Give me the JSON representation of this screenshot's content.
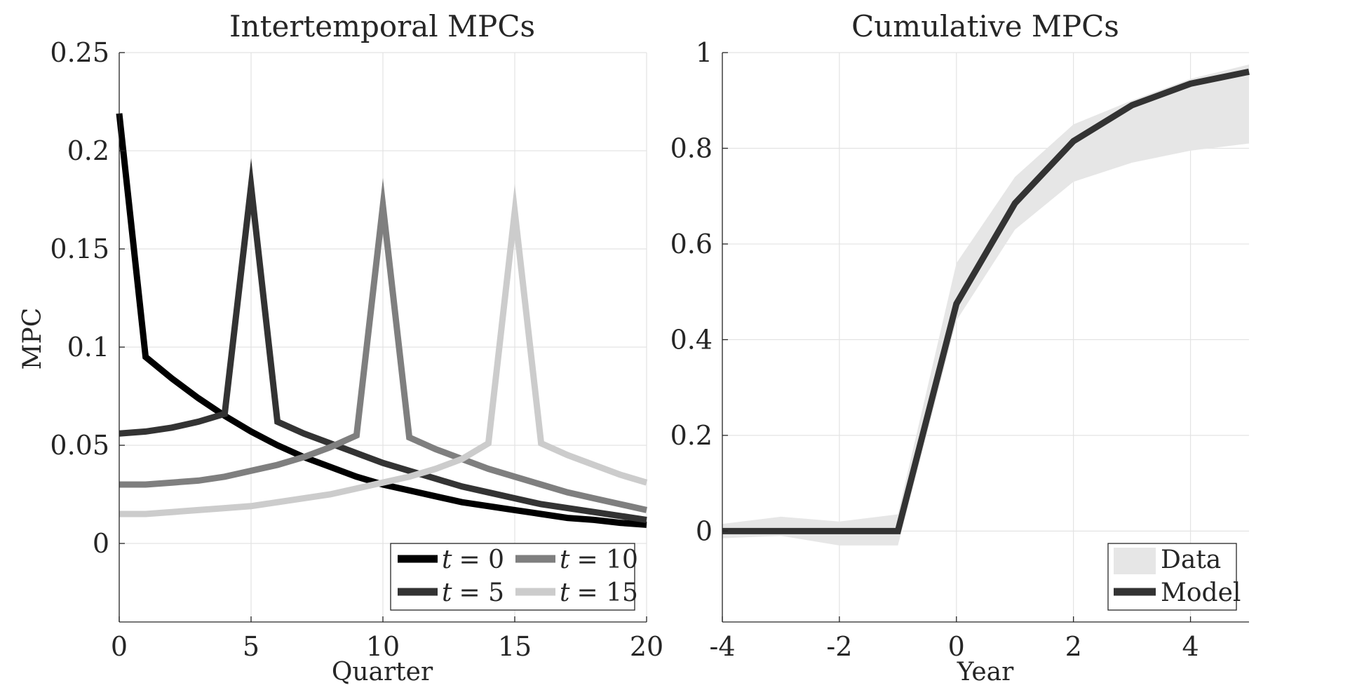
{
  "chart_data": [
    {
      "type": "line",
      "title": "Intertemporal MPCs",
      "xlabel": "Quarter",
      "ylabel": "MPC",
      "xlim": [
        0,
        20
      ],
      "ylim": [
        -0.04,
        0.25
      ],
      "xticks": [
        0,
        5,
        10,
        15,
        20
      ],
      "xtick_labels": [
        "0",
        "5",
        "10",
        "15",
        "20"
      ],
      "yticks": [
        0,
        0.05,
        0.1,
        0.15,
        0.2,
        0.25
      ],
      "ytick_labels": [
        "0",
        "0.05",
        "0.1",
        "0.15",
        "0.2",
        "0.25"
      ],
      "grid": true,
      "legend_position": "bottom-right",
      "series": [
        {
          "name": "t = 0",
          "legend_var": "t",
          "legend_value": "= 0",
          "color": "#000000",
          "x": [
            0,
            1,
            2,
            3,
            4,
            5,
            6,
            7,
            8,
            9,
            10,
            11,
            12,
            13,
            14,
            15,
            16,
            17,
            18,
            19,
            20
          ],
          "y": [
            0.219,
            0.095,
            0.084,
            0.074,
            0.065,
            0.057,
            0.05,
            0.044,
            0.039,
            0.034,
            0.03,
            0.027,
            0.024,
            0.021,
            0.019,
            0.017,
            0.015,
            0.013,
            0.012,
            0.0105,
            0.0095
          ]
        },
        {
          "name": "t = 5",
          "legend_var": "t",
          "legend_value": "= 5",
          "color": "#333333",
          "x": [
            0,
            1,
            2,
            3,
            4,
            5,
            6,
            7,
            8,
            9,
            10,
            11,
            12,
            13,
            14,
            15,
            16,
            17,
            18,
            19,
            20
          ],
          "y": [
            0.056,
            0.057,
            0.059,
            0.062,
            0.066,
            0.182,
            0.062,
            0.056,
            0.051,
            0.046,
            0.041,
            0.037,
            0.033,
            0.029,
            0.026,
            0.023,
            0.02,
            0.018,
            0.016,
            0.014,
            0.012
          ]
        },
        {
          "name": "t = 10",
          "legend_var": "t",
          "legend_value": "= 10",
          "color": "#7f7f7f",
          "x": [
            0,
            1,
            2,
            3,
            4,
            5,
            6,
            7,
            8,
            9,
            10,
            11,
            12,
            13,
            14,
            15,
            16,
            17,
            18,
            19,
            20
          ],
          "y": [
            0.03,
            0.03,
            0.031,
            0.032,
            0.034,
            0.037,
            0.04,
            0.044,
            0.049,
            0.055,
            0.172,
            0.054,
            0.048,
            0.043,
            0.038,
            0.034,
            0.03,
            0.026,
            0.023,
            0.02,
            0.017
          ]
        },
        {
          "name": "t = 15",
          "legend_var": "t",
          "legend_value": "= 15",
          "color": "#cccccc",
          "x": [
            0,
            1,
            2,
            3,
            4,
            5,
            6,
            7,
            8,
            9,
            10,
            11,
            12,
            13,
            14,
            15,
            16,
            17,
            18,
            19,
            20
          ],
          "y": [
            0.015,
            0.015,
            0.016,
            0.017,
            0.018,
            0.019,
            0.021,
            0.023,
            0.025,
            0.028,
            0.031,
            0.034,
            0.038,
            0.043,
            0.051,
            0.169,
            0.051,
            0.045,
            0.04,
            0.035,
            0.031
          ]
        }
      ]
    },
    {
      "type": "line",
      "title": "Cumulative MPCs",
      "xlabel": "Year",
      "ylabel": "",
      "xlim": [
        -4,
        5
      ],
      "ylim": [
        -0.19,
        1
      ],
      "xticks": [
        -4,
        -2,
        0,
        2,
        4
      ],
      "xtick_labels": [
        "-4",
        "-2",
        "0",
        "2",
        "4"
      ],
      "yticks": [
        0,
        0.2,
        0.4,
        0.6,
        0.8,
        1
      ],
      "ytick_labels": [
        "0",
        "0.2",
        "0.4",
        "0.6",
        "0.8",
        "1"
      ],
      "grid": true,
      "legend_position": "bottom-right",
      "band": {
        "name": "Data",
        "color": "#e6e6e6",
        "x": [
          -4,
          -3,
          -2,
          -1,
          0,
          1,
          2,
          3,
          4,
          5
        ],
        "upper": [
          0.015,
          0.03,
          0.02,
          0.035,
          0.56,
          0.74,
          0.85,
          0.9,
          0.945,
          0.975
        ],
        "lower": [
          -0.015,
          -0.01,
          -0.03,
          -0.03,
          0.44,
          0.63,
          0.73,
          0.77,
          0.795,
          0.81
        ]
      },
      "series": [
        {
          "name": "Model",
          "color": "#333333",
          "x": [
            -4,
            -3,
            -2,
            -1,
            0,
            1,
            2,
            3,
            4,
            5
          ],
          "y": [
            0,
            0,
            0,
            0,
            0.475,
            0.685,
            0.815,
            0.89,
            0.935,
            0.96
          ]
        }
      ]
    }
  ]
}
